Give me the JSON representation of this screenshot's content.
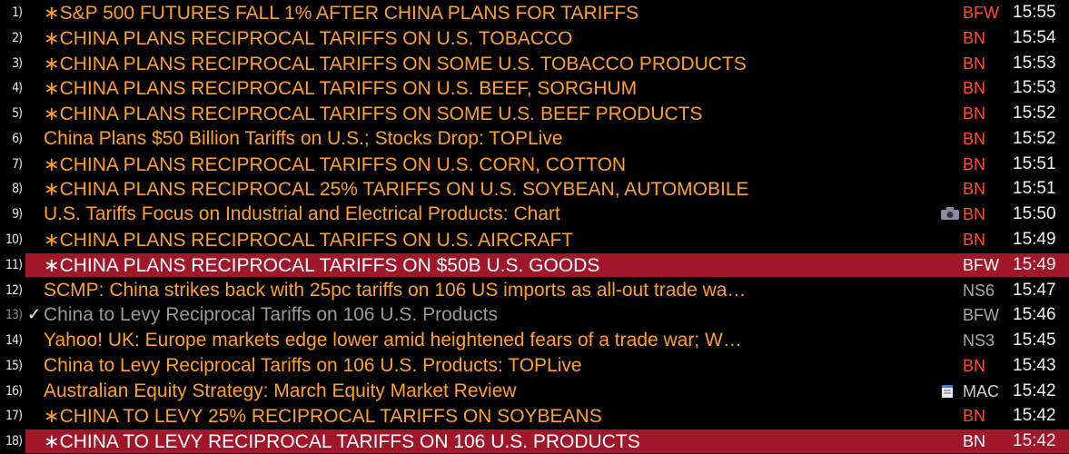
{
  "news": {
    "rows": [
      {
        "number": "1)",
        "headline": "∗S&P 500 FUTURES FALL 1% AFTER CHINA PLANS FOR TARIFFS",
        "source": "BFW",
        "time": "15:55",
        "source_color": "#ff4b2b"
      },
      {
        "number": "2)",
        "headline": "∗CHINA PLANS RECIPROCAL TARIFFS ON U.S. TOBACCO",
        "source": "BN",
        "time": "15:54",
        "source_color": "#ff4b2b"
      },
      {
        "number": "3)",
        "headline": "∗CHINA PLANS RECIPROCAL TARIFFS ON SOME U.S. TOBACCO PRODUCTS",
        "source": "BN",
        "time": "15:53",
        "source_color": "#ff4b2b"
      },
      {
        "number": "4)",
        "headline": "∗CHINA PLANS RECIPROCAL TARIFFS ON U.S. BEEF, SORGHUM",
        "source": "BN",
        "time": "15:53",
        "source_color": "#ff4b2b"
      },
      {
        "number": "5)",
        "headline": "∗CHINA PLANS RECIPROCAL TARIFFS ON SOME U.S. BEEF PRODUCTS",
        "source": "BN",
        "time": "15:52",
        "source_color": "#ff4b2b"
      },
      {
        "number": "6)",
        "headline": "China Plans $50 Billion Tariffs on U.S.; Stocks Drop: TOPLive",
        "source": "BN",
        "time": "15:52",
        "source_color": "#ff4b2b"
      },
      {
        "number": "7)",
        "headline": "∗CHINA PLANS RECIPROCAL TARIFFS ON U.S. CORN, COTTON",
        "source": "BN",
        "time": "15:51",
        "source_color": "#ff4b2b"
      },
      {
        "number": "8)",
        "headline": "∗CHINA PLANS RECIPROCAL 25% TARIFFS ON U.S. SOYBEAN, AUTOMOBILE",
        "source": "BN",
        "time": "15:51",
        "source_color": "#ff4b2b"
      },
      {
        "number": "9)",
        "headline": "U.S. Tariffs Focus on Industrial and Electrical Products: Chart",
        "source": "BN",
        "time": "15:50",
        "source_color": "#ff4b2b",
        "icon": "camera"
      },
      {
        "number": "10)",
        "headline": "∗CHINA PLANS RECIPROCAL TARIFFS ON U.S. AIRCRAFT",
        "source": "BN",
        "time": "15:49",
        "source_color": "#ff4b2b"
      },
      {
        "number": "11)",
        "headline": "∗CHINA PLANS RECIPROCAL TARIFFS ON $50B U.S. GOODS",
        "source": "BFW",
        "time": "15:49",
        "source_color": "#ffffff",
        "highlighted": true
      },
      {
        "number": "12)",
        "headline": "SCMP: China strikes back with 25pc tariffs on 106 US imports as all-out trade wa…",
        "source": "NS6",
        "time": "15:47",
        "source_color": "#a8a8a8"
      },
      {
        "number": "13)",
        "headline": "China to Levy Reciprocal Tariffs on 106 U.S. Products",
        "source": "BFW",
        "time": "15:46",
        "source_color": "#a8a8a8",
        "read": true
      },
      {
        "number": "14)",
        "headline": "Yahoo! UK: Europe markets edge lower amid heightened fears of a trade war; W…",
        "source": "NS3",
        "time": "15:45",
        "source_color": "#a8a8a8"
      },
      {
        "number": "15)",
        "headline": "China to Levy Reciprocal Tariffs on 106 U.S. Products: TOPLive",
        "source": "BN",
        "time": "15:43",
        "source_color": "#ff4b2b"
      },
      {
        "number": "16)",
        "headline": "Australian Equity Strategy: March Equity Market Review",
        "source": "MAC",
        "time": "15:42",
        "source_color": "#d0d0d0",
        "icon": "document"
      },
      {
        "number": "17)",
        "headline": "∗CHINA TO LEVY 25% RECIPROCAL TARIFFS ON SOYBEANS",
        "source": "BN",
        "time": "15:42",
        "source_color": "#ff4b2b"
      },
      {
        "number": "18)",
        "headline": "∗CHINA TO LEVY RECIPROCAL TARIFFS ON 106 U.S. PRODUCTS",
        "source": "BN",
        "time": "15:42",
        "source_color": "#ffffff",
        "highlighted": true
      }
    ]
  }
}
